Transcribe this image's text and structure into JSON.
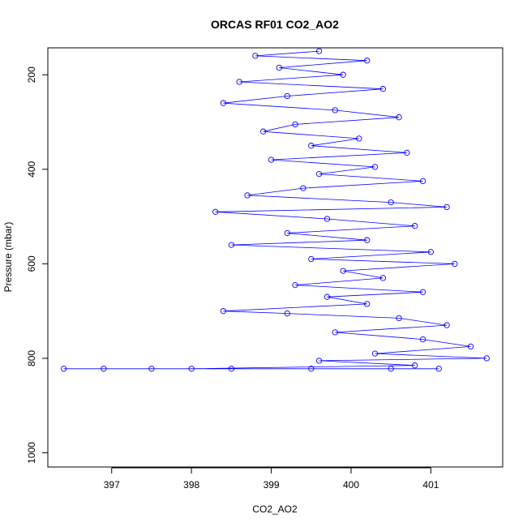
{
  "chart_data": {
    "type": "scatter",
    "title": "ORCAS RF01 CO2_AO2",
    "xlabel": "CO2_AO2",
    "ylabel": "Pressure (mbar)",
    "xlim": [
      396.2,
      401.9
    ],
    "ylim": [
      1030,
      143
    ],
    "y_reversed": true,
    "x_ticks": [
      397,
      398,
      399,
      400,
      401
    ],
    "y_ticks": [
      200,
      400,
      600,
      800,
      1000
    ],
    "color": "#0000ff",
    "marker": "open-circle",
    "connected": true,
    "series": [
      {
        "values": [
          {
            "x": 399.6,
            "y": 150
          },
          {
            "x": 398.8,
            "y": 160
          },
          {
            "x": 400.2,
            "y": 170
          },
          {
            "x": 399.1,
            "y": 185
          },
          {
            "x": 399.9,
            "y": 200
          },
          {
            "x": 398.6,
            "y": 215
          },
          {
            "x": 400.4,
            "y": 230
          },
          {
            "x": 399.2,
            "y": 245
          },
          {
            "x": 398.4,
            "y": 260
          },
          {
            "x": 399.8,
            "y": 275
          },
          {
            "x": 400.6,
            "y": 290
          },
          {
            "x": 399.3,
            "y": 305
          },
          {
            "x": 398.9,
            "y": 320
          },
          {
            "x": 400.1,
            "y": 335
          },
          {
            "x": 399.5,
            "y": 350
          },
          {
            "x": 400.7,
            "y": 365
          },
          {
            "x": 399.0,
            "y": 380
          },
          {
            "x": 400.3,
            "y": 395
          },
          {
            "x": 399.6,
            "y": 410
          },
          {
            "x": 400.9,
            "y": 425
          },
          {
            "x": 399.4,
            "y": 440
          },
          {
            "x": 398.7,
            "y": 455
          },
          {
            "x": 400.5,
            "y": 470
          },
          {
            "x": 401.2,
            "y": 480
          },
          {
            "x": 398.3,
            "y": 490
          },
          {
            "x": 399.7,
            "y": 505
          },
          {
            "x": 400.8,
            "y": 520
          },
          {
            "x": 399.2,
            "y": 535
          },
          {
            "x": 400.2,
            "y": 550
          },
          {
            "x": 398.5,
            "y": 560
          },
          {
            "x": 401.0,
            "y": 575
          },
          {
            "x": 399.5,
            "y": 590
          },
          {
            "x": 401.3,
            "y": 600
          },
          {
            "x": 399.9,
            "y": 615
          },
          {
            "x": 400.4,
            "y": 630
          },
          {
            "x": 399.3,
            "y": 645
          },
          {
            "x": 400.9,
            "y": 660
          },
          {
            "x": 399.7,
            "y": 670
          },
          {
            "x": 400.2,
            "y": 685
          },
          {
            "x": 398.4,
            "y": 700
          },
          {
            "x": 399.2,
            "y": 705
          },
          {
            "x": 400.6,
            "y": 715
          },
          {
            "x": 401.2,
            "y": 730
          },
          {
            "x": 399.8,
            "y": 745
          },
          {
            "x": 400.9,
            "y": 760
          },
          {
            "x": 401.5,
            "y": 775
          },
          {
            "x": 400.3,
            "y": 790
          },
          {
            "x": 401.7,
            "y": 800
          },
          {
            "x": 399.6,
            "y": 805
          },
          {
            "x": 400.8,
            "y": 815
          },
          {
            "x": 398.0,
            "y": 822
          },
          {
            "x": 396.4,
            "y": 822
          },
          {
            "x": 396.9,
            "y": 822
          },
          {
            "x": 397.5,
            "y": 822
          },
          {
            "x": 398.5,
            "y": 822
          },
          {
            "x": 399.5,
            "y": 822
          },
          {
            "x": 400.5,
            "y": 822
          },
          {
            "x": 401.1,
            "y": 822
          }
        ]
      }
    ]
  }
}
